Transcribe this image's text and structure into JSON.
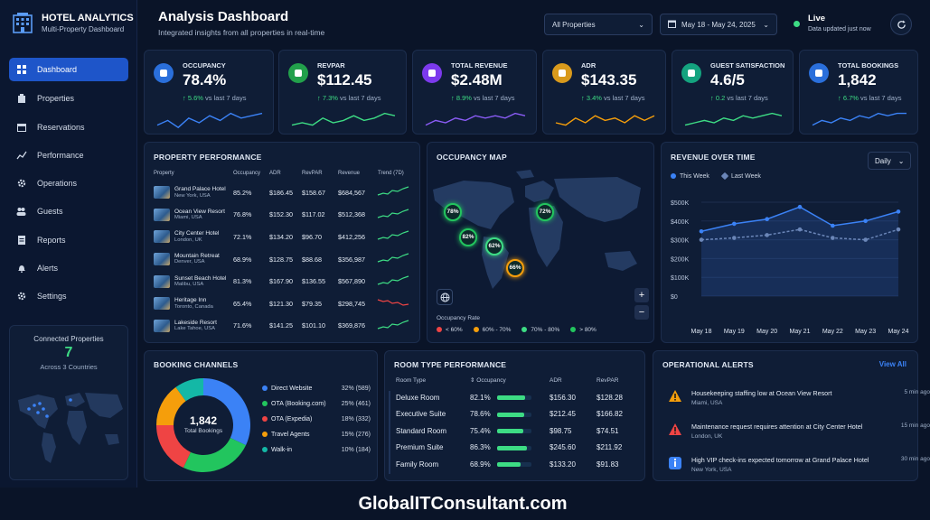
{
  "brand": {
    "title": "HOTEL ANALYTICS",
    "subtitle": "Multi-Property Dashboard",
    "icon": "hotel-building-icon"
  },
  "sidebar": {
    "items": [
      {
        "label": "Dashboard",
        "icon": "dashboard-grid-icon",
        "active": true
      },
      {
        "label": "Properties",
        "icon": "building-icon"
      },
      {
        "label": "Reservations",
        "icon": "calendar-icon"
      },
      {
        "label": "Performance",
        "icon": "line-chart-icon"
      },
      {
        "label": "Operations",
        "icon": "gear-icon"
      },
      {
        "label": "Guests",
        "icon": "users-icon"
      },
      {
        "label": "Reports",
        "icon": "report-icon"
      },
      {
        "label": "Alerts",
        "icon": "bell-icon"
      },
      {
        "label": "Settings",
        "icon": "settings-icon"
      }
    ],
    "connected": {
      "title": "Connected Properties",
      "count": "7",
      "sub": "Across 3 Countries"
    }
  },
  "header": {
    "title": "Analysis Dashboard",
    "subtitle": "Integrated insights from all properties in real-time",
    "property_select": "All Properties",
    "date_range": "May 18 - May 24, 2025",
    "live": "Live",
    "live_sub": "Data updated just now"
  },
  "kpis": [
    {
      "label": "OCCUPANCY",
      "value": "78.4%",
      "change": "5.6%",
      "vs": "vs last 7 days",
      "icon": "bed-icon",
      "color": "#2a6fdb",
      "spark_color": "#3b82f6"
    },
    {
      "label": "REVPAR",
      "value": "$112.45",
      "change": "7.3%",
      "vs": "vs last 7 days",
      "icon": "dollar-icon",
      "color": "#22a04b",
      "spark_color": "#3ddc84"
    },
    {
      "label": "TOTAL REVENUE",
      "value": "$2.48M",
      "change": "8.9%",
      "vs": "vs last 7 days",
      "icon": "bar-chart-icon",
      "color": "#7c3aed",
      "spark_color": "#8b5cf6"
    },
    {
      "label": "ADR",
      "value": "$143.35",
      "change": "3.4%",
      "vs": "vs last 7 days",
      "icon": "price-tag-icon",
      "color": "#d99a1c",
      "spark_color": "#f59e0b"
    },
    {
      "label": "GUEST SATISFACTION",
      "value": "4.6/5",
      "change": "0.2",
      "vs": "vs last 7 days",
      "icon": "star-icon",
      "color": "#14a37f",
      "spark_color": "#3ddc84"
    },
    {
      "label": "TOTAL BOOKINGS",
      "value": "1,842",
      "change": "6.7%",
      "vs": "vs last 7 days",
      "icon": "calendar-check-icon",
      "color": "#2a6fdb",
      "spark_color": "#3b82f6"
    }
  ],
  "property_performance": {
    "title": "PROPERTY PERFORMANCE",
    "columns": [
      "Property",
      "Occupancy",
      "ADR",
      "RevPAR",
      "Revenue",
      "Trend (7D)"
    ],
    "rows": [
      {
        "name": "Grand Palace Hotel",
        "loc": "New York, USA",
        "occ": "85.2%",
        "adr": "$186.45",
        "revpar": "$158.67",
        "rev": "$684,567",
        "trend": "up"
      },
      {
        "name": "Ocean View Resort",
        "loc": "Miami, USA",
        "occ": "76.8%",
        "adr": "$152.30",
        "revpar": "$117.02",
        "rev": "$512,368",
        "trend": "up"
      },
      {
        "name": "City Center Hotel",
        "loc": "London, UK",
        "occ": "72.1%",
        "adr": "$134.20",
        "revpar": "$96.70",
        "rev": "$412,256",
        "trend": "up"
      },
      {
        "name": "Mountain Retreat",
        "loc": "Denver, USA",
        "occ": "68.9%",
        "adr": "$128.75",
        "revpar": "$88.68",
        "rev": "$356,987",
        "trend": "up"
      },
      {
        "name": "Sunset Beach Hotel",
        "loc": "Malibu, USA",
        "occ": "81.3%",
        "adr": "$167.90",
        "revpar": "$136.55",
        "rev": "$567,890",
        "trend": "up"
      },
      {
        "name": "Heritage Inn",
        "loc": "Toronto, Canada",
        "occ": "65.4%",
        "adr": "$121.30",
        "revpar": "$79.35",
        "rev": "$298,745",
        "trend": "down"
      },
      {
        "name": "Lakeside Resort",
        "loc": "Lake Tahoe, USA",
        "occ": "71.6%",
        "adr": "$141.25",
        "revpar": "$101.10",
        "rev": "$369,876",
        "trend": "up"
      }
    ]
  },
  "occupancy_map": {
    "title": "OCCUPANCY MAP",
    "markers": [
      "78%",
      "72%",
      "82%",
      "62%",
      "66%"
    ],
    "legend_title": "Occupancy Rate",
    "legend": [
      {
        "label": "< 60%",
        "color": "#ef4444"
      },
      {
        "label": "60% - 70%",
        "color": "#f59e0b"
      },
      {
        "label": "70% - 80%",
        "color": "#3ddc84"
      },
      {
        "label": "> 80%",
        "color": "#22c55e"
      }
    ],
    "zoom_in": "+",
    "zoom_out": "−"
  },
  "revenue_chart": {
    "title": "REVENUE OVER TIME",
    "period": "Daily",
    "legend_this": "This Week",
    "legend_last": "Last Week",
    "chart_data": {
      "type": "line",
      "categories": [
        "May 18",
        "May 19",
        "May 20",
        "May 21",
        "May 22",
        "May 23",
        "May 24"
      ],
      "series": [
        {
          "name": "This Week",
          "values": [
            345000,
            385000,
            410000,
            475000,
            375000,
            400000,
            450000
          ]
        },
        {
          "name": "Last Week",
          "values": [
            300000,
            310000,
            325000,
            355000,
            310000,
            300000,
            355000
          ]
        }
      ],
      "yticks": [
        "$500K",
        "$400K",
        "$300K",
        "$200K",
        "$100K",
        "$0"
      ],
      "ylim": [
        0,
        500000
      ]
    }
  },
  "booking_channels": {
    "title": "BOOKING CHANNELS",
    "center_value": "1,842",
    "center_label": "Total Bookings",
    "chart_data": {
      "type": "pie",
      "labels": [
        "Direct Website",
        "OTA (Booking.com)",
        "OTA (Expedia)",
        "Travel Agents",
        "Walk-in"
      ],
      "values": [
        32,
        25,
        18,
        15,
        10
      ],
      "counts": [
        589,
        461,
        332,
        276,
        184
      ],
      "colors": [
        "#3b82f6",
        "#22c55e",
        "#ef4444",
        "#f59e0b",
        "#14b8a6"
      ]
    },
    "value_labels": [
      "32% (589)",
      "25% (461)",
      "18% (332)",
      "15% (276)",
      "10% (184)"
    ]
  },
  "room_types": {
    "title": "ROOM TYPE PERFORMANCE",
    "columns": [
      "Room Type",
      "Occupancy",
      "ADR",
      "RevPAR"
    ],
    "rows": [
      {
        "type": "Deluxe Room",
        "occ": "82.1%",
        "occ_value": 0.821,
        "adr": "$156.30",
        "revpar": "$128.28"
      },
      {
        "type": "Executive Suite",
        "occ": "78.6%",
        "occ_value": 0.786,
        "adr": "$212.45",
        "revpar": "$166.82"
      },
      {
        "type": "Standard Room",
        "occ": "75.4%",
        "occ_value": 0.754,
        "adr": "$98.75",
        "revpar": "$74.51"
      },
      {
        "type": "Premium Suite",
        "occ": "86.3%",
        "occ_value": 0.863,
        "adr": "$245.60",
        "revpar": "$211.92"
      },
      {
        "type": "Family Room",
        "occ": "68.9%",
        "occ_value": 0.689,
        "adr": "$133.20",
        "revpar": "$91.83"
      }
    ]
  },
  "alerts": {
    "title": "OPERATIONAL ALERTS",
    "view_all": "View All",
    "items": [
      {
        "msg": "Housekeeping staffing low at Ocean View Resort",
        "loc": "Miami, USA",
        "time": "5 min ago",
        "icon": "warning-icon",
        "color": "#f59e0b"
      },
      {
        "msg": "Maintenance request requires attention at City Center Hotel",
        "loc": "London, UK",
        "time": "15 min ago",
        "icon": "warning-icon",
        "color": "#ef4444"
      },
      {
        "msg": "High VIP check-ins expected tomorrow at Grand Palace Hotel",
        "loc": "New York, USA",
        "time": "30 min ago",
        "icon": "info-icon",
        "color": "#3b82f6"
      }
    ]
  },
  "footer": "GlobalITConsultant.com"
}
